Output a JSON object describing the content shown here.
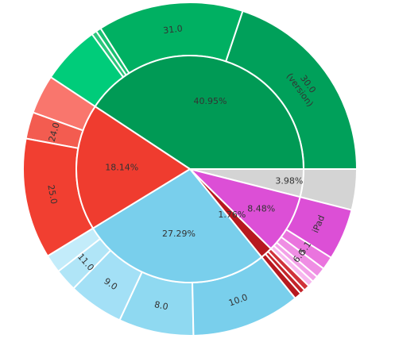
{
  "chart_data": {
    "type": "sunburst",
    "title": "",
    "inner": [
      {
        "id": "green",
        "label": "40.95%",
        "value": 40.95,
        "color": "#009a55"
      },
      {
        "id": "gray",
        "label": "3.98%",
        "value": 3.98,
        "color": "#d4d4d4"
      },
      {
        "id": "magenta",
        "label": "8.48%",
        "value": 8.48,
        "color": "#dc4fd6"
      },
      {
        "id": "darkred",
        "label": "1.76%",
        "value": 1.76,
        "color": "#b7191f"
      },
      {
        "id": "blue",
        "label": "27.29%",
        "value": 27.29,
        "color": "#79cfec"
      },
      {
        "id": "red",
        "label": "18.14%",
        "value": 18.14,
        "color": "#ef3c2f"
      }
    ],
    "outer": [
      {
        "parent": "green",
        "label": "30.0 (version)",
        "value": 20.0,
        "color": "#00a05a"
      },
      {
        "parent": "green",
        "label": "31.0",
        "value": 14.2,
        "color": "#00b062"
      },
      {
        "parent": "green",
        "label": "",
        "value": 0.5,
        "color": "#19c171"
      },
      {
        "parent": "green",
        "label": "",
        "value": 0.5,
        "color": "#2bc67c"
      },
      {
        "parent": "green",
        "label": "",
        "value": 5.75,
        "color": "#00cc7a"
      },
      {
        "parent": "gray",
        "label": "",
        "value": 3.98,
        "color": "#d4d4d4"
      },
      {
        "parent": "magenta",
        "label": "",
        "value": 0.6,
        "color": "#f7b7ee"
      },
      {
        "parent": "magenta",
        "label": "",
        "value": 0.6,
        "color": "#f3a1e8"
      },
      {
        "parent": "magenta",
        "label": "6.0",
        "value": 1.0,
        "color": "#ef8ee4"
      },
      {
        "parent": "magenta",
        "label": "5.1",
        "value": 1.28,
        "color": "#ea74de"
      },
      {
        "parent": "magenta",
        "label": "iPad",
        "value": 5.0,
        "color": "#dc4fd6"
      },
      {
        "parent": "darkred",
        "label": "",
        "value": 0.7,
        "color": "#b7191f"
      },
      {
        "parent": "darkred",
        "label": "",
        "value": 0.5,
        "color": "#c4242a"
      },
      {
        "parent": "darkred",
        "label": "",
        "value": 0.56,
        "color": "#d0323a"
      },
      {
        "parent": "blue",
        "label": "",
        "value": 1.8,
        "color": "#c3ecfa"
      },
      {
        "parent": "blue",
        "label": "11.0",
        "value": 2.2,
        "color": "#b0e5f7"
      },
      {
        "parent": "blue",
        "label": "9.0",
        "value": 5.4,
        "color": "#a3e0f6"
      },
      {
        "parent": "blue",
        "label": "8.0",
        "value": 7.3,
        "color": "#8fd9f1"
      },
      {
        "parent": "blue",
        "label": "10.0",
        "value": 10.59,
        "color": "#79cfec"
      },
      {
        "parent": "red",
        "label": "",
        "value": 3.8,
        "color": "#f9766d"
      },
      {
        "parent": "red",
        "label": "24.0",
        "value": 2.6,
        "color": "#f35c50"
      },
      {
        "parent": "red",
        "label": "25.0",
        "value": 11.74,
        "color": "#f13f31"
      }
    ]
  }
}
